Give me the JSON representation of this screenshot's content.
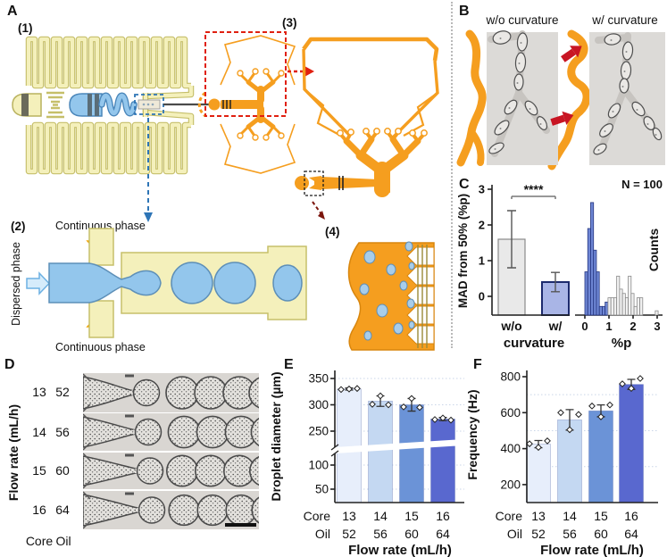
{
  "panels": {
    "A": {
      "label": "A",
      "sub_labels": {
        "s1": "(1)",
        "s2": "(2)",
        "s3": "(3)",
        "s4": "(4)"
      },
      "annotations": {
        "dispersed": "Dispersed phase",
        "continuous_top": "Continuous phase",
        "continuous_bottom": "Continuous phase"
      }
    },
    "B": {
      "label": "B",
      "left_title": "w/o curvature",
      "right_title": "w/ curvature"
    },
    "C": {
      "label": "C"
    },
    "D": {
      "label": "D",
      "ylabel": "Flow rate (mL/h)",
      "col1_header": "Core",
      "col2_header": "Oil",
      "rows": [
        {
          "core": "13",
          "oil": "52"
        },
        {
          "core": "14",
          "oil": "56"
        },
        {
          "core": "15",
          "oil": "60"
        },
        {
          "core": "16",
          "oil": "64"
        }
      ]
    },
    "E": {
      "label": "E"
    },
    "F": {
      "label": "F"
    }
  },
  "colors": {
    "yellow_channel": "#f4f0bb",
    "yellow_outline": "#c6bf6a",
    "blue_channel": "#93c6ec",
    "blue_outline": "#4a86ba",
    "orange": "#f59e1f",
    "orange_outline": "#d8860e",
    "red_accent": "#e02010",
    "dark_red": "#7b150c",
    "arrow_red": "#c81523"
  },
  "chart_data": [
    {
      "id": "C_bars",
      "type": "bar",
      "panel": "C",
      "categories": [
        "w/o",
        "w/"
      ],
      "values": [
        1.6,
        0.4
      ],
      "errors": [
        0.8,
        0.27
      ],
      "ylabel": "MAD from 50% (%p)",
      "xlabel": "curvature",
      "yticks": [
        0,
        1,
        2,
        3
      ],
      "ylim": [
        -0.55,
        3.3
      ],
      "significance": "****",
      "bar_colors": [
        "#e9e9e9",
        "#a9b5e6"
      ],
      "bar_edge_colors": [
        "#8a8a8a",
        "#1c2a6d"
      ]
    },
    {
      "id": "C_hist",
      "type": "histogram",
      "panel": "C",
      "xlabel": "%p",
      "counts_label": "Counts",
      "note": "N = 100",
      "xticks": [
        0,
        1,
        2,
        3
      ],
      "bin_width": 0.12,
      "ylim": [
        0,
        27
      ],
      "series": [
        {
          "name": "w/ curvature",
          "color": "#6e86d4",
          "edge": "#25357f",
          "bin_starts": [
            0.0,
            0.12,
            0.24,
            0.36,
            0.48,
            0.6,
            0.72,
            0.84
          ],
          "counts": [
            10,
            20,
            26,
            15,
            10,
            2,
            2,
            3
          ]
        },
        {
          "name": "w/o curvature",
          "color": "#f1f1f1",
          "edge": "#8a8a8a",
          "bin_starts": [
            0.96,
            1.08,
            1.2,
            1.32,
            1.44,
            1.56,
            1.68,
            1.8,
            1.92,
            2.04,
            2.16,
            2.28,
            2.92
          ],
          "counts": [
            4,
            4,
            4,
            9,
            6,
            5,
            4,
            9,
            5,
            2,
            4,
            4,
            1
          ]
        }
      ]
    },
    {
      "id": "E",
      "type": "bar",
      "panel": "E",
      "ylabel": "Droplet diameter (µm)",
      "xlabel": "Flow rate (mL/h)",
      "group_headers": [
        "Core",
        "Oil"
      ],
      "groups": [
        {
          "core": "13",
          "oil": "52"
        },
        {
          "core": "14",
          "oil": "56"
        },
        {
          "core": "15",
          "oil": "60"
        },
        {
          "core": "16",
          "oil": "64"
        }
      ],
      "values": [
        330,
        307,
        300,
        273
      ],
      "errors": [
        2,
        10,
        12,
        3
      ],
      "points": [
        [
          329,
          330,
          331
        ],
        [
          301,
          317,
          300
        ],
        [
          296,
          312,
          295
        ],
        [
          272,
          275,
          271
        ]
      ],
      "bar_colors": [
        "#e7eefb",
        "#c4d8f2",
        "#6b93d7",
        "#5968cf"
      ],
      "yticks_lower": [
        50,
        100
      ],
      "yticks_upper": [
        250,
        300,
        350
      ],
      "axis_break": [
        125,
        235
      ],
      "ylim": [
        0,
        360
      ]
    },
    {
      "id": "F",
      "type": "bar",
      "panel": "F",
      "ylabel": "Frequency (Hz)",
      "xlabel": "Flow rate (mL/h)",
      "group_headers": [
        "Core",
        "Oil"
      ],
      "groups": [
        {
          "core": "13",
          "oil": "52"
        },
        {
          "core": "14",
          "oil": "56"
        },
        {
          "core": "15",
          "oil": "60"
        },
        {
          "core": "16",
          "oil": "64"
        }
      ],
      "values": [
        425,
        560,
        610,
        757
      ],
      "errors": [
        20,
        57,
        33,
        28
      ],
      "points": [
        [
          427,
          407,
          443
        ],
        [
          600,
          505,
          590
        ],
        [
          637,
          577,
          643
        ],
        [
          760,
          735,
          790
        ]
      ],
      "bar_colors": [
        "#e7eefb",
        "#c4d8f2",
        "#6b93d7",
        "#5968cf"
      ],
      "yticks": [
        200,
        400,
        600,
        800
      ],
      "gridlines": [
        300,
        500,
        700
      ],
      "ylim": [
        100,
        800
      ]
    }
  ]
}
